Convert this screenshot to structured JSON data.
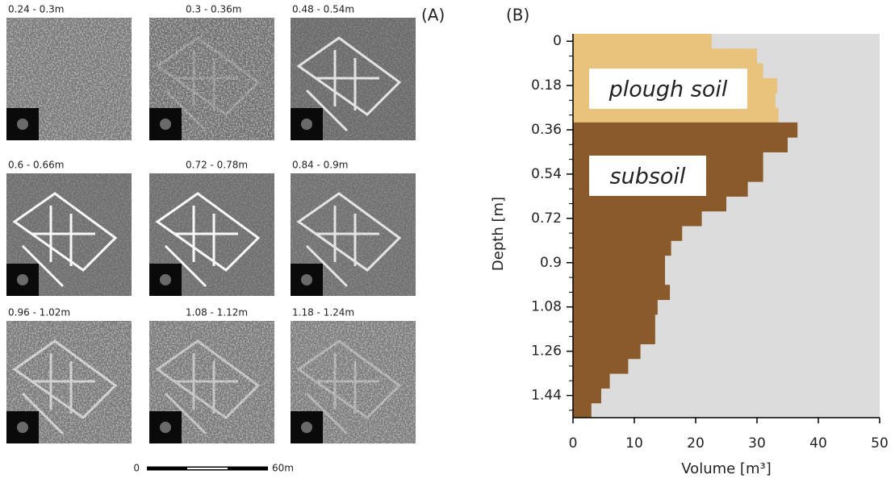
{
  "panel_a": {
    "label": "(A)",
    "slices": [
      "0.24 - 0.3m",
      "0.3 - 0.36m",
      "0.48 - 0.54m",
      "0.6 - 0.66m",
      "0.72 - 0.78m",
      "0.84 - 0.9m",
      "0.96 - 1.02m",
      "1.08 - 1.12m",
      "1.18 - 1.24m"
    ],
    "scale_bar": {
      "start": "0",
      "end": "60m"
    }
  },
  "chart_data": {
    "type": "barh-step",
    "panel_label": "(B)",
    "ylabel": "Depth [m]",
    "xlabel": "Volume [m³]",
    "depth": [
      0,
      0.06,
      0.12,
      0.18,
      0.24,
      0.3,
      0.36,
      0.42,
      0.48,
      0.54,
      0.6,
      0.66,
      0.72,
      0.78,
      0.84,
      0.9,
      0.96,
      1.02,
      1.08,
      1.14,
      1.2,
      1.26,
      1.32,
      1.38,
      1.44,
      1.5
    ],
    "series": [
      {
        "name": "plough soil",
        "color": "#e9c27b",
        "values": [
          22.6,
          30,
          31,
          33.3,
          33,
          33.5,
          null,
          null,
          null,
          null,
          null,
          null,
          null,
          null,
          null,
          null,
          null,
          null,
          null,
          null,
          null,
          null,
          null,
          null,
          null,
          null
        ]
      },
      {
        "name": "subsoil",
        "color": "#8b5a2b",
        "values": [
          null,
          null,
          null,
          null,
          null,
          null,
          36.6,
          35,
          31,
          31,
          28.5,
          25,
          21,
          17.8,
          16,
          15,
          15,
          15.8,
          13.8,
          13.4,
          13.4,
          11,
          9,
          6,
          4.6,
          3
        ]
      }
    ],
    "xlim": [
      0,
      50
    ],
    "xticks": [
      0,
      10,
      20,
      30,
      40,
      50
    ],
    "ylim": [
      -0.03,
      1.53
    ],
    "yticks": [
      0,
      0.18,
      0.36,
      0.54,
      0.72,
      0.9,
      1.08,
      1.26,
      1.44
    ],
    "yminorticks": [
      0.06,
      0.12,
      0.24,
      0.3,
      0.42,
      0.48,
      0.6,
      0.66,
      0.78,
      0.84,
      0.96,
      1.02,
      1.14,
      1.2,
      1.32,
      1.38,
      1.5
    ],
    "y_inverted": true,
    "background": "#dcdcdc"
  }
}
